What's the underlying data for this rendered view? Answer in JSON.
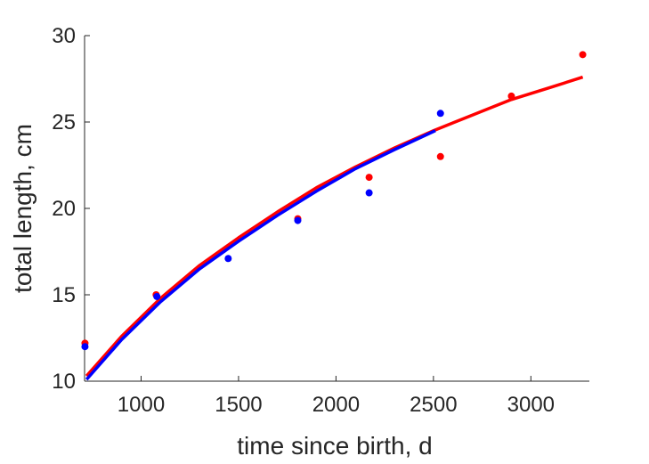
{
  "chart_data": {
    "type": "scatter",
    "title": "",
    "xlabel": "time since birth, d",
    "ylabel": "total length, cm",
    "xlim": [
      710,
      3300
    ],
    "ylim": [
      10,
      30
    ],
    "xticks": [
      "1000",
      "1500",
      "2000",
      "2500",
      "3000"
    ],
    "yticks": [
      "10",
      "15",
      "20",
      "25",
      "30"
    ],
    "grid": false,
    "legend": "none",
    "series": [
      {
        "color": "#ff0000",
        "points": {
          "x": [
            712,
            1077,
            1804,
            2170,
            2536,
            2900,
            3266
          ],
          "y": [
            12.2,
            15.0,
            19.4,
            21.8,
            23.0,
            26.5,
            28.9
          ]
        },
        "curve": {
          "x": [
            720,
            900,
            1100,
            1300,
            1500,
            1700,
            1900,
            2100,
            2300,
            2500,
            2700,
            2900,
            3100,
            3266
          ],
          "y": [
            10.3,
            12.6,
            14.8,
            16.7,
            18.3,
            19.8,
            21.2,
            22.4,
            23.5,
            24.5,
            25.4,
            26.3,
            27.0,
            27.6
          ]
        }
      },
      {
        "color": "#0000ff",
        "points": {
          "x": [
            712,
            1081,
            1447,
            1804,
            2170,
            2536
          ],
          "y": [
            12.0,
            14.9,
            17.1,
            19.3,
            20.9,
            25.5
          ]
        },
        "curve": {
          "x": [
            720,
            900,
            1100,
            1300,
            1500,
            1700,
            1900,
            2100,
            2300,
            2510
          ],
          "y": [
            10.1,
            12.4,
            14.6,
            16.5,
            18.1,
            19.6,
            21.0,
            22.3,
            23.4,
            24.5
          ]
        }
      }
    ]
  }
}
